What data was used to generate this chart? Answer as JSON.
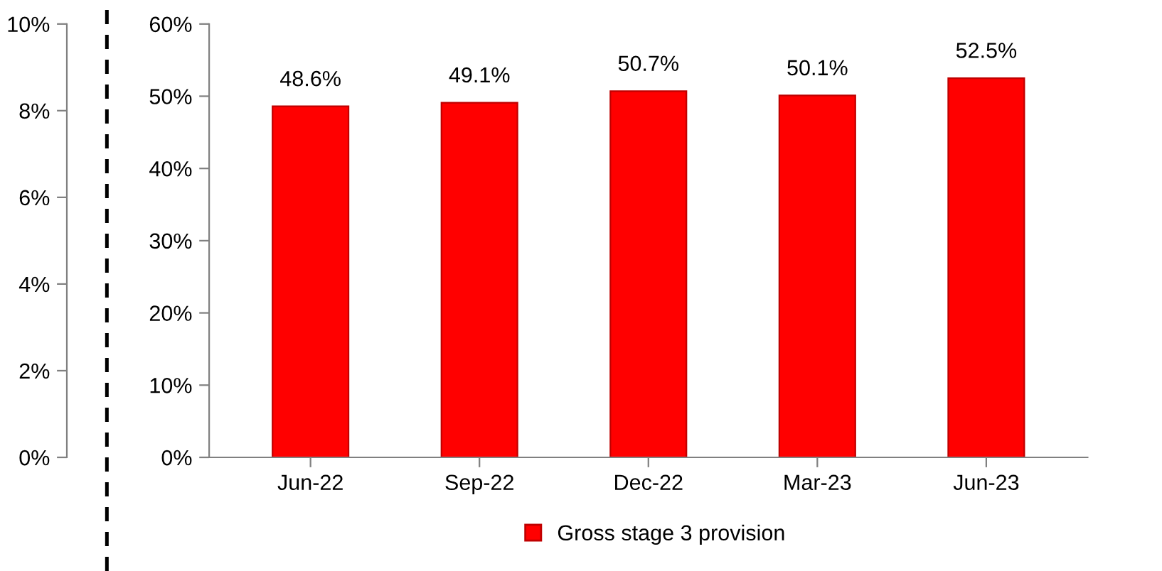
{
  "chart_data": {
    "type": "bar",
    "categories": [
      "Jun-22",
      "Sep-22",
      "Dec-22",
      "Mar-23",
      "Jun-23"
    ],
    "series": [
      {
        "name": "Gross stage 3 provision",
        "color": "#ff0000",
        "values": [
          48.6,
          49.1,
          50.7,
          50.1,
          52.5
        ]
      }
    ],
    "value_labels": [
      "48.6%",
      "49.1%",
      "50.7%",
      "50.1%",
      "52.5%"
    ],
    "ylim": [
      0,
      60
    ],
    "yticks": [
      {
        "value": 0,
        "label": "0%"
      },
      {
        "value": 10,
        "label": "10%"
      },
      {
        "value": 20,
        "label": "20%"
      },
      {
        "value": 30,
        "label": "30%"
      },
      {
        "value": 40,
        "label": "40%"
      },
      {
        "value": 50,
        "label": "50%"
      },
      {
        "value": 60,
        "label": "60%"
      }
    ],
    "y2lim": [
      0,
      10
    ],
    "y2ticks": [
      {
        "value": 0,
        "label": "0%"
      },
      {
        "value": 2,
        "label": "2%"
      },
      {
        "value": 4,
        "label": "4%"
      },
      {
        "value": 6,
        "label": "6%"
      },
      {
        "value": 8,
        "label": "8%"
      },
      {
        "value": 10,
        "label": "10%"
      }
    ],
    "grid": false,
    "legend": "bottom"
  }
}
